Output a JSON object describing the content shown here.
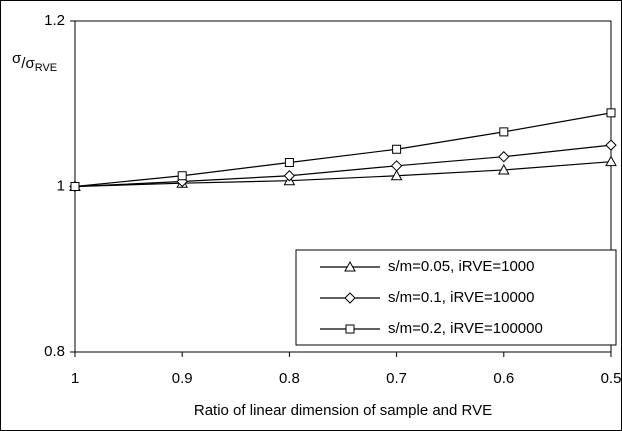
{
  "chart_data": {
    "type": "line",
    "x_label": "Ratio of linear dimension of sample and RVE",
    "y_label": {
      "symbol": "σ",
      "denominator": "σ",
      "subscript": "RVE"
    },
    "x": [
      1,
      0.9,
      0.8,
      0.7,
      0.6,
      0.5
    ],
    "xlim": [
      1,
      0.5
    ],
    "xticks": [
      1,
      0.9,
      0.8,
      0.7,
      0.6,
      0.5
    ],
    "ylim": [
      0.8,
      1.2
    ],
    "yticks": [
      0.8,
      1,
      1.2
    ],
    "legend_position": "lower-right",
    "series": [
      {
        "name": "s/m=0.05, iRVE=1000",
        "marker": "triangle",
        "color": "#000000",
        "values": [
          1.0,
          1.004,
          1.007,
          1.013,
          1.02,
          1.03
        ]
      },
      {
        "name": "s/m=0.1, iRVE=10000",
        "marker": "diamond",
        "color": "#000000",
        "values": [
          1.0,
          1.006,
          1.013,
          1.025,
          1.036,
          1.05
        ]
      },
      {
        "name": "s/m=0.2, iRVE=100000",
        "marker": "square",
        "color": "#000000",
        "values": [
          1.0,
          1.013,
          1.029,
          1.045,
          1.066,
          1.089
        ]
      }
    ]
  }
}
